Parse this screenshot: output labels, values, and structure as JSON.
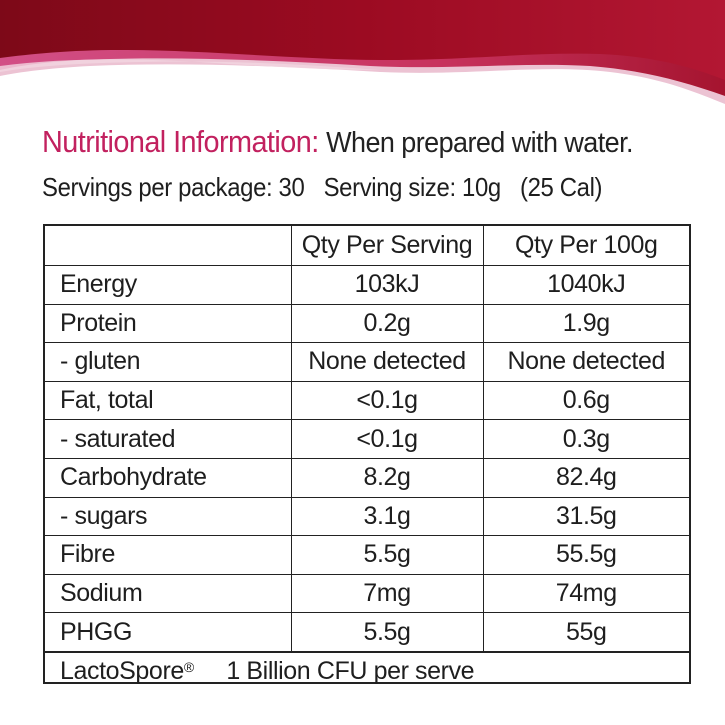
{
  "banner": {
    "colors": {
      "dark": "#9c0b22",
      "mid": "#c8335e",
      "light": "#e7a0b8"
    }
  },
  "heading": {
    "label": "Nutritional Information:",
    "note": "When prepared with water.",
    "label_color": "#c2215f"
  },
  "servings": {
    "per_package": "Servings per package: 30",
    "serving_size": "Serving size: 10g",
    "calories": "(25 Cal)"
  },
  "table": {
    "columns": [
      "",
      "Qty Per Serving",
      "Qty Per 100g"
    ],
    "rows": [
      {
        "nutrient": "Energy",
        "per_serving": "103kJ",
        "per_100g": "1040kJ"
      },
      {
        "nutrient": "Protein",
        "per_serving": "0.2g",
        "per_100g": "1.9g"
      },
      {
        "nutrient": "- gluten",
        "per_serving": "None detected",
        "per_100g": "None detected"
      },
      {
        "nutrient": "Fat, total",
        "per_serving": "<0.1g",
        "per_100g": "0.6g"
      },
      {
        "nutrient": "- saturated",
        "per_serving": "<0.1g",
        "per_100g": "0.3g"
      },
      {
        "nutrient": "Carbohydrate",
        "per_serving": "8.2g",
        "per_100g": "82.4g"
      },
      {
        "nutrient": "- sugars",
        "per_serving": "3.1g",
        "per_100g": "31.5g"
      },
      {
        "nutrient": "Fibre",
        "per_serving": "5.5g",
        "per_100g": "55.5g"
      },
      {
        "nutrient": "Sodium",
        "per_serving": "7mg",
        "per_100g": "74mg"
      },
      {
        "nutrient": "PHGG",
        "per_serving": "5.5g",
        "per_100g": "55g"
      }
    ],
    "footer": {
      "name": "LactoSpore",
      "mark": "®",
      "value": "1 Billion CFU per serve"
    }
  }
}
